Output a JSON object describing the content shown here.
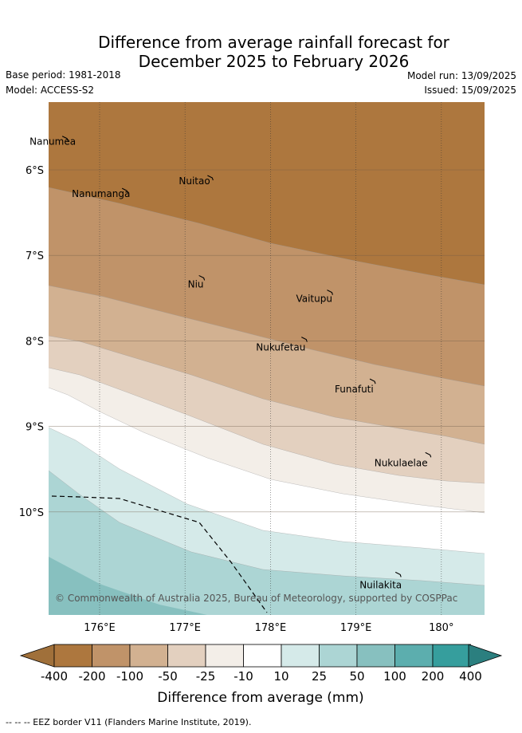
{
  "header": {
    "title_line1": "Difference from average rainfall forecast for",
    "title_line2": "December 2025 to February 2026",
    "base_period": "Base period: 1981-2018",
    "model": "Model: ACCESS-S2",
    "model_run": "Model run: 13/09/2025",
    "issued": "Issued: 15/09/2025"
  },
  "map": {
    "lat_labels": [
      "6°S",
      "7°S",
      "8°S",
      "9°S",
      "10°S"
    ],
    "lon_labels": [
      "176°E",
      "177°E",
      "178°E",
      "179°E",
      "180°"
    ],
    "places": [
      {
        "name": "Nanumea",
        "lon": 175.6,
        "lat": -5.68
      },
      {
        "name": "Nuitao",
        "lon": 177.3,
        "lat": -6.14
      },
      {
        "name": "Nanumanga",
        "lon": 176.3,
        "lat": -6.29
      },
      {
        "name": "Niu",
        "lon": 177.2,
        "lat": -7.31
      },
      {
        "name": "Vaitupu",
        "lon": 178.7,
        "lat": -7.48
      },
      {
        "name": "Nukufetau",
        "lon": 178.4,
        "lat": -8.03
      },
      {
        "name": "Funafuti",
        "lon": 179.2,
        "lat": -8.52
      },
      {
        "name": "Nukulaelae",
        "lon": 179.85,
        "lat": -9.38
      },
      {
        "name": "Nuilakita",
        "lon": 179.5,
        "lat": -10.78
      }
    ],
    "copyright": "© Commonwealth of Australia 2025, Bureau of Meteorology, supported by COSPPac"
  },
  "legend": {
    "ticks": [
      "-400",
      "-200",
      "-100",
      "-50",
      "-25",
      "-10",
      "10",
      "25",
      "50",
      "100",
      "200",
      "400"
    ],
    "colors": [
      "#a0703a",
      "#ad773e",
      "#c09369",
      "#d2b191",
      "#e3d0bf",
      "#f3eee8",
      "#ffffff",
      "#d5eae9",
      "#acd5d4",
      "#87c0bf",
      "#5caeae",
      "#369e9d",
      "#2b7f7f"
    ],
    "label": "Difference from average (mm)"
  },
  "footnote": "-- -- -- EEZ border V11 (Flanders Marine Institute, 2019)."
}
